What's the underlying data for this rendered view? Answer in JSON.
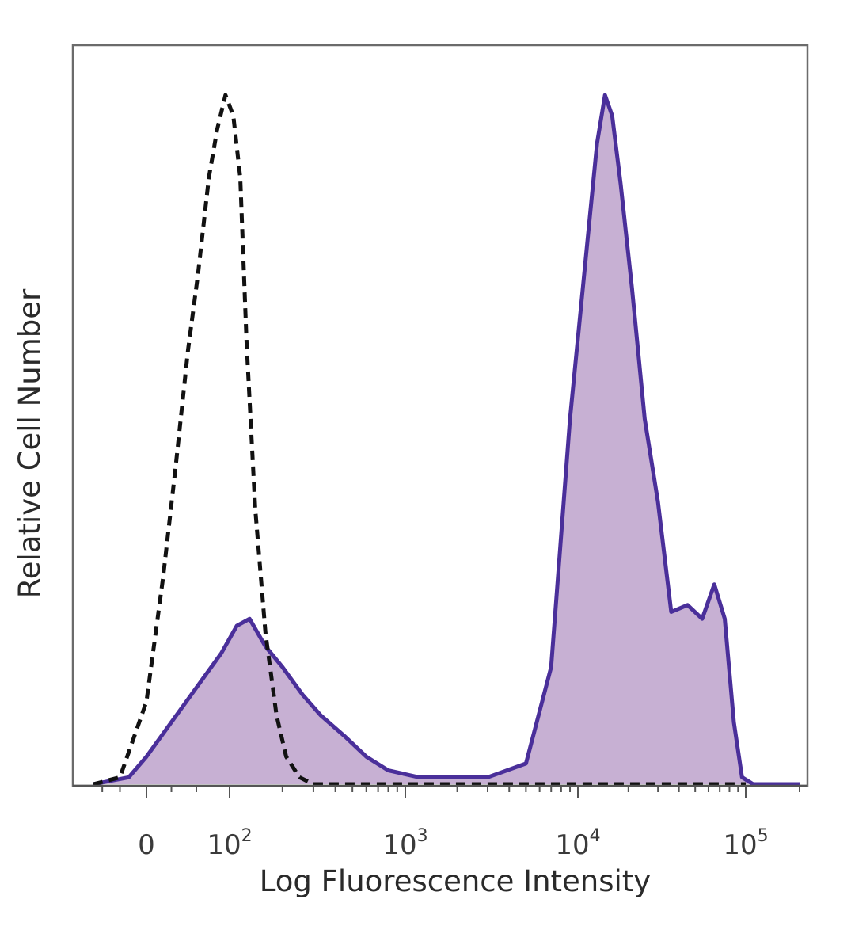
{
  "chart_data": {
    "type": "area",
    "title": "",
    "xlabel": "Log Fluorescence Intensity",
    "ylabel": "Relative Cell Number",
    "x_scale": "biexponential",
    "x_ticks": [
      {
        "value": 0,
        "base": "0",
        "exp": ""
      },
      {
        "value": 100,
        "base": "10",
        "exp": "2"
      },
      {
        "value": 1000,
        "base": "10",
        "exp": "3"
      },
      {
        "value": 10000,
        "base": "10",
        "exp": "4"
      },
      {
        "value": 100000,
        "base": "10",
        "exp": "5"
      }
    ],
    "ylim": [
      0,
      1
    ],
    "grid": false,
    "series": [
      {
        "style": "dashed",
        "fill": false,
        "color": "#111111",
        "points": [
          [
            -60,
            0
          ],
          [
            -30,
            0.01
          ],
          [
            0,
            0.12
          ],
          [
            20,
            0.3
          ],
          [
            35,
            0.46
          ],
          [
            50,
            0.63
          ],
          [
            62,
            0.74
          ],
          [
            75,
            0.88
          ],
          [
            85,
            0.95
          ],
          [
            95,
            1.0
          ],
          [
            105,
            0.97
          ],
          [
            115,
            0.88
          ],
          [
            125,
            0.64
          ],
          [
            140,
            0.4
          ],
          [
            160,
            0.22
          ],
          [
            185,
            0.1
          ],
          [
            210,
            0.04
          ],
          [
            250,
            0.01
          ],
          [
            300,
            0
          ],
          [
            100000,
            0
          ]
        ]
      },
      {
        "style": "solid",
        "fill": true,
        "color": "#4a2f9a",
        "fill_color": "#c7b0d3",
        "points": [
          [
            -60,
            0
          ],
          [
            -20,
            0.01
          ],
          [
            0,
            0.04
          ],
          [
            30,
            0.09
          ],
          [
            60,
            0.14
          ],
          [
            90,
            0.19
          ],
          [
            110,
            0.23
          ],
          [
            130,
            0.24
          ],
          [
            160,
            0.2
          ],
          [
            200,
            0.17
          ],
          [
            260,
            0.13
          ],
          [
            330,
            0.1
          ],
          [
            450,
            0.07
          ],
          [
            600,
            0.04
          ],
          [
            800,
            0.02
          ],
          [
            1200,
            0.01
          ],
          [
            2000,
            0.01
          ],
          [
            3000,
            0.01
          ],
          [
            5000,
            0.03
          ],
          [
            7000,
            0.17
          ],
          [
            9000,
            0.53
          ],
          [
            11000,
            0.75
          ],
          [
            13000,
            0.93
          ],
          [
            14500,
            1.0
          ],
          [
            16000,
            0.97
          ],
          [
            18000,
            0.87
          ],
          [
            21000,
            0.72
          ],
          [
            25000,
            0.53
          ],
          [
            30000,
            0.41
          ],
          [
            36000,
            0.25
          ],
          [
            45000,
            0.26
          ],
          [
            55000,
            0.24
          ],
          [
            65000,
            0.29
          ],
          [
            75000,
            0.24
          ],
          [
            85000,
            0.09
          ],
          [
            95000,
            0.01
          ],
          [
            110000,
            0
          ],
          [
            200000,
            0
          ]
        ]
      }
    ]
  }
}
